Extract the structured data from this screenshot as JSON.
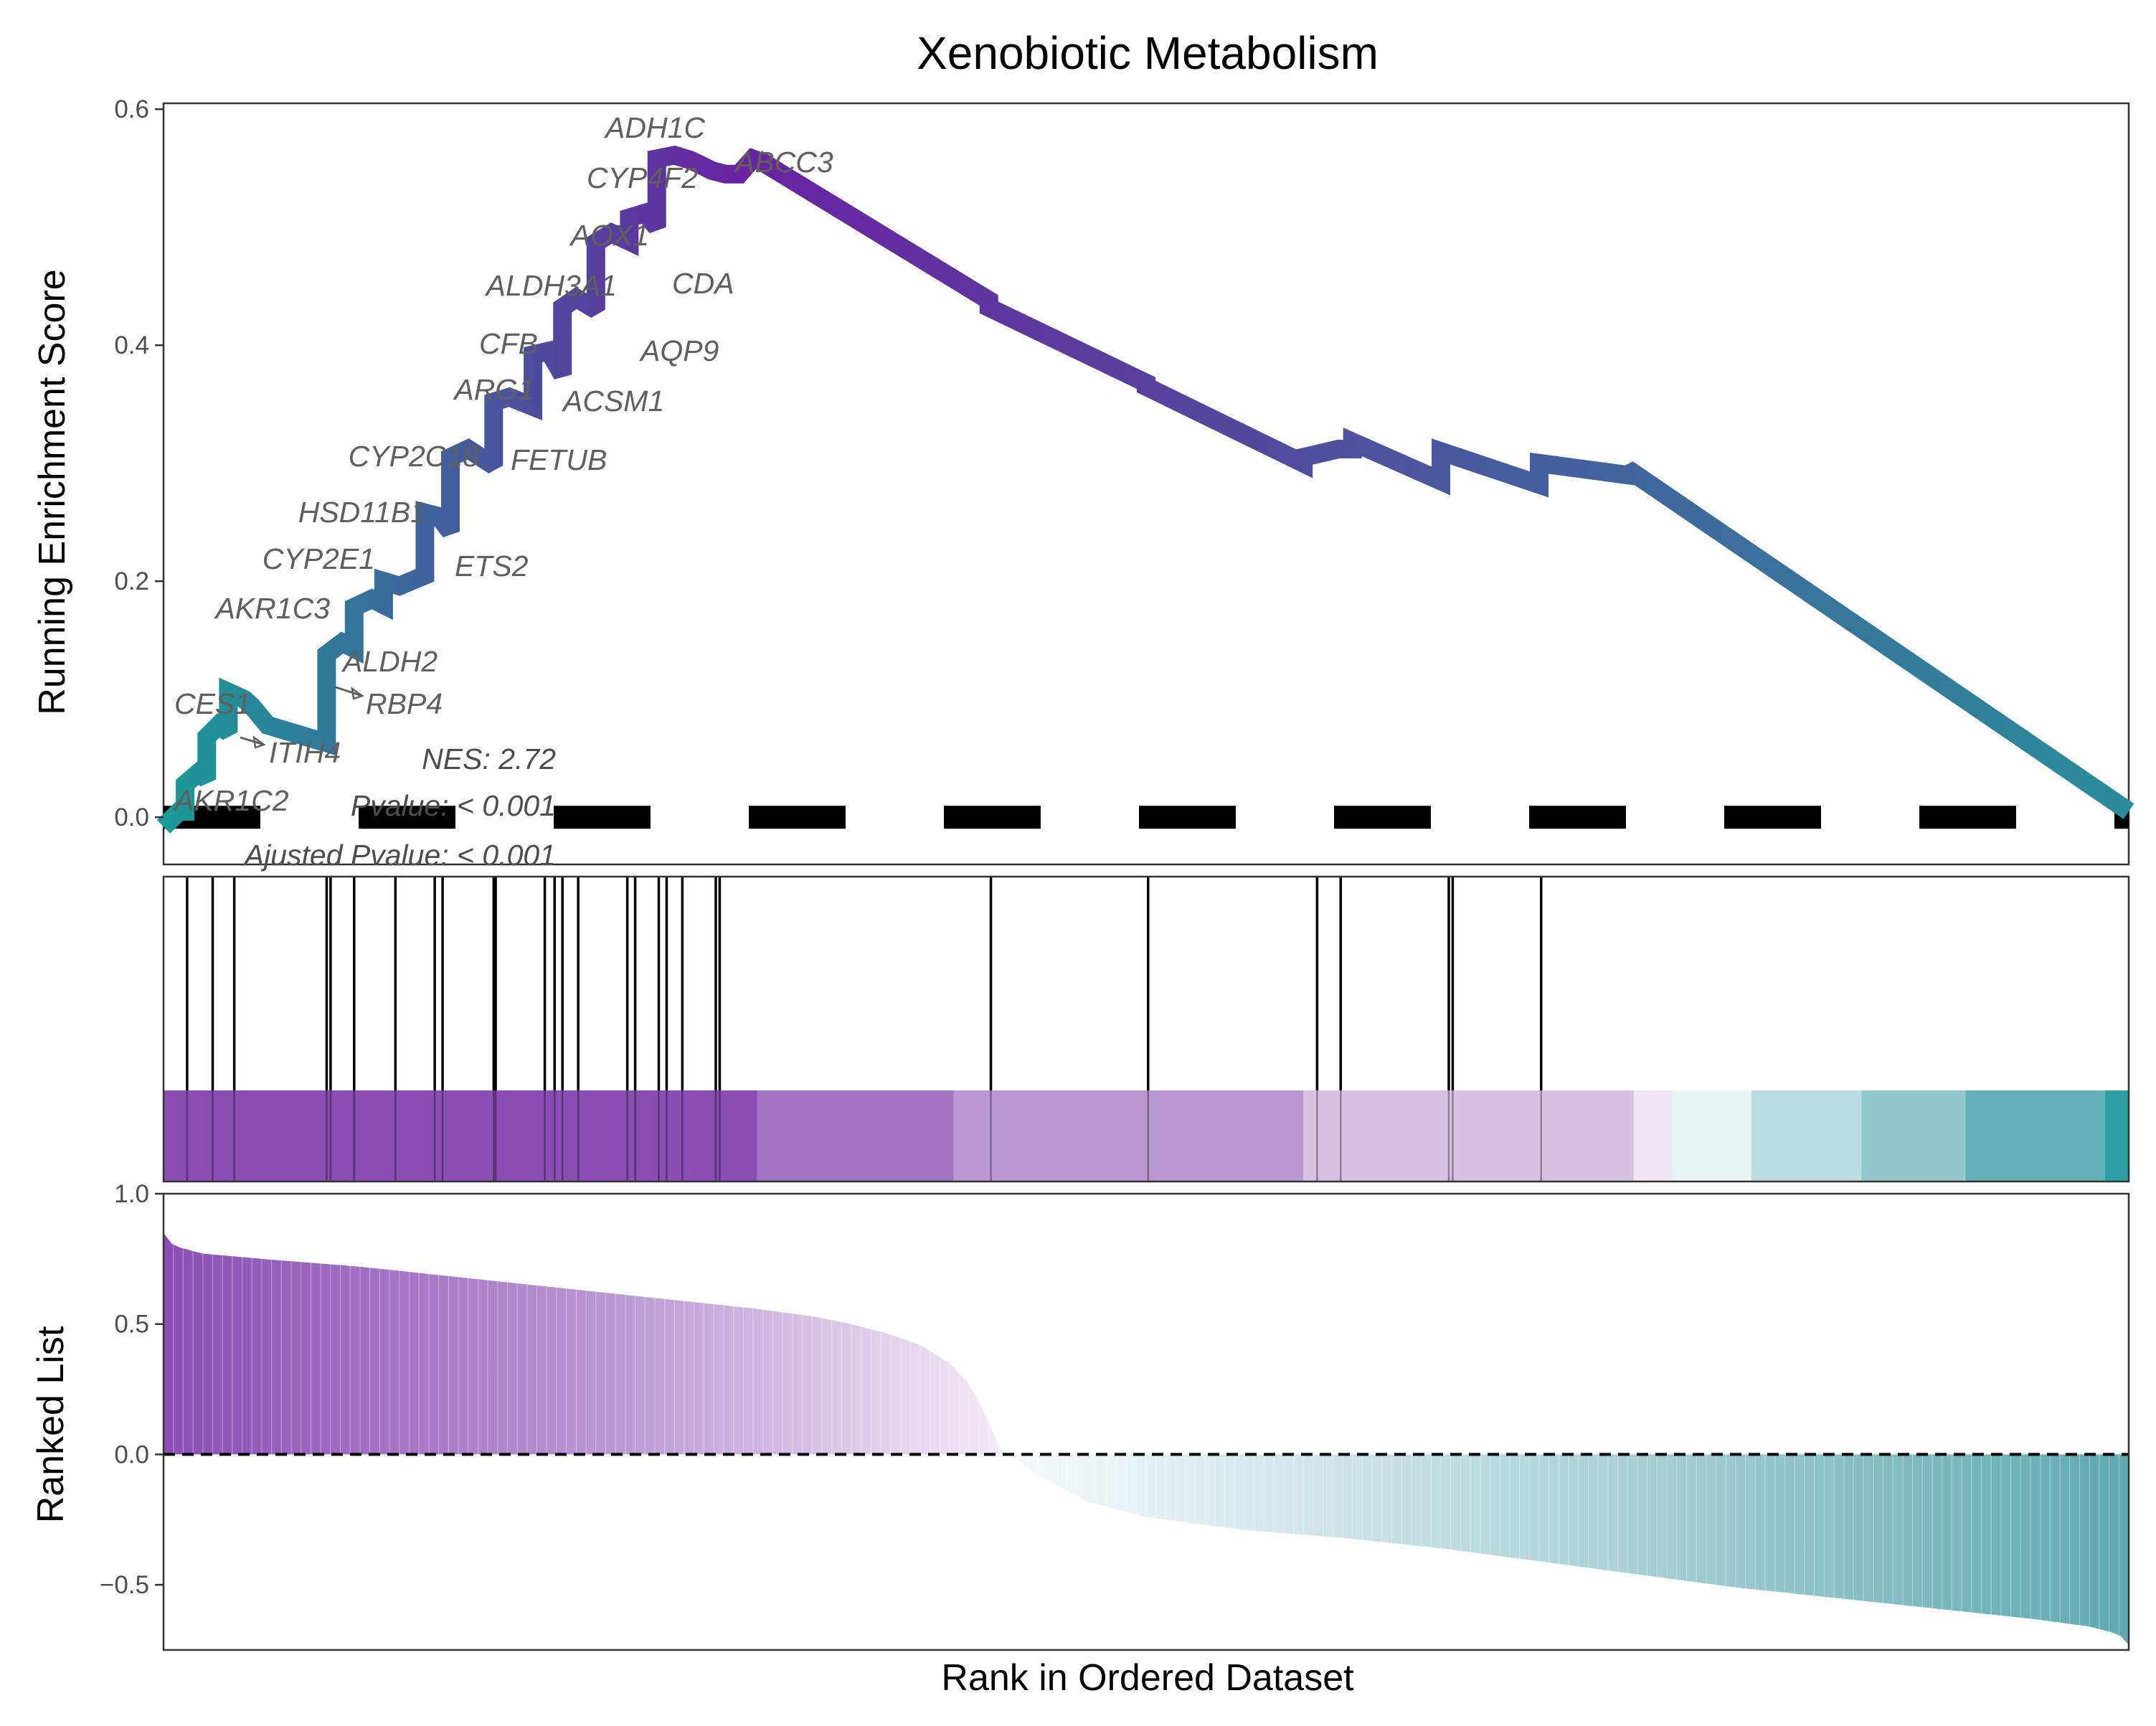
{
  "chart_data": [
    {
      "type": "line",
      "title": "Xenobiotic Metabolism",
      "ylabel": "Running Enrichment Score",
      "ylim": [
        -0.04,
        0.605
      ],
      "yticks": [
        0.0,
        0.2,
        0.4,
        0.6
      ],
      "ytick_labels": [
        "0.0",
        "0.2",
        "0.4",
        "0.6"
      ],
      "grid": false,
      "x_range": [
        0,
        1
      ],
      "baseline": 0.0,
      "series": [
        {
          "x": [
            0.0,
            0.008,
            0.011,
            0.011,
            0.018,
            0.022,
            0.022,
            0.028,
            0.033,
            0.033,
            0.041,
            0.045,
            0.045,
            0.053,
            0.083,
            0.083,
            0.091,
            0.097,
            0.097,
            0.106,
            0.112,
            0.112,
            0.12,
            0.133,
            0.133,
            0.14,
            0.146,
            0.146,
            0.155,
            0.168,
            0.168,
            0.176,
            0.188,
            0.188,
            0.196,
            0.203,
            0.203,
            0.21,
            0.22,
            0.22,
            0.228,
            0.237,
            0.237,
            0.245,
            0.251,
            0.251,
            0.26,
            0.268,
            0.268,
            0.273,
            0.279,
            0.279,
            0.286,
            0.293,
            0.293,
            0.302,
            0.302,
            0.42,
            0.42,
            0.5,
            0.5,
            0.58,
            0.58,
            0.598,
            0.605,
            0.605,
            0.65,
            0.65,
            0.7,
            0.7,
            0.745,
            0.745,
            1.0
          ],
          "y": [
            -0.008,
            0.005,
            0.005,
            0.028,
            0.038,
            0.032,
            0.068,
            0.078,
            0.072,
            0.106,
            0.1,
            0.094,
            0.094,
            0.078,
            0.063,
            0.138,
            0.148,
            0.143,
            0.178,
            0.185,
            0.18,
            0.2,
            0.196,
            0.205,
            0.258,
            0.255,
            0.242,
            0.305,
            0.312,
            0.298,
            0.352,
            0.356,
            0.348,
            0.392,
            0.395,
            0.375,
            0.432,
            0.44,
            0.43,
            0.487,
            0.495,
            0.488,
            0.508,
            0.512,
            0.5,
            0.558,
            0.561,
            0.557,
            0.557,
            0.553,
            0.548,
            0.548,
            0.545,
            0.545,
            0.545,
            0.562,
            0.558,
            0.438,
            0.432,
            0.368,
            0.365,
            0.3,
            0.305,
            0.312,
            0.312,
            0.318,
            0.285,
            0.31,
            0.282,
            0.3,
            0.29,
            0.295,
            0.005
          ],
          "color_start": "#1a9a98",
          "color_peak": "#6a22a0",
          "color_end": "#2a8c9a"
        }
      ],
      "annotations": [
        "NES: 2.72",
        "Pvalue: < 0.001",
        "Ajusted Pvalue: < 0.001"
      ],
      "gene_labels": [
        "ADH1C",
        "CYP4F2",
        "ABCC3",
        "AOX1",
        "ALDH3A1",
        "CDA",
        "CFB",
        "AQP9",
        "ARG1",
        "ACSM1",
        "CYP2C18",
        "FETUB",
        "HSD11B1",
        "CYP2E1",
        "ETS2",
        "AKR1C3",
        "ALDH2",
        "RBP4",
        "CES1",
        "ITIH4",
        "AKR1C2"
      ]
    },
    {
      "type": "heatmap",
      "hit_positions": [
        0.012,
        0.025,
        0.036,
        0.083,
        0.085,
        0.097,
        0.118,
        0.138,
        0.142,
        0.168,
        0.169,
        0.194,
        0.199,
        0.203,
        0.211,
        0.236,
        0.24,
        0.252,
        0.256,
        0.264,
        0.281,
        0.283,
        0.421,
        0.501,
        0.587,
        0.599,
        0.654,
        0.656,
        0.701
      ],
      "color_bands": [
        {
          "from": 0.0,
          "to": 0.302,
          "color": "#8a4db4"
        },
        {
          "from": 0.302,
          "to": 0.402,
          "color": "#a274c3"
        },
        {
          "from": 0.402,
          "to": 0.58,
          "color": "#bc98d2"
        },
        {
          "from": 0.58,
          "to": 0.748,
          "color": "#d8c2e4"
        },
        {
          "from": 0.748,
          "to": 0.768,
          "color": "#efe6f4"
        },
        {
          "from": 0.768,
          "to": 0.808,
          "color": "#e8f3f4"
        },
        {
          "from": 0.808,
          "to": 0.864,
          "color": "#bcdde0"
        },
        {
          "from": 0.864,
          "to": 0.917,
          "color": "#92c9cc"
        },
        {
          "from": 0.917,
          "to": 0.988,
          "color": "#62b1b8"
        },
        {
          "from": 0.988,
          "to": 1.0,
          "color": "#2e9ea6"
        }
      ]
    },
    {
      "type": "area",
      "ylabel": "Ranked List",
      "xlabel": "Rank in Ordered Dataset",
      "ylim": [
        -0.75,
        1.0
      ],
      "yticks": [
        -0.5,
        0.0,
        0.5,
        1.0
      ],
      "ytick_labels": [
        "−0.5",
        "0.0",
        "0.5",
        "1.0"
      ],
      "grid": false,
      "x": [
        0.0,
        0.005,
        0.02,
        0.05,
        0.1,
        0.15,
        0.2,
        0.25,
        0.3,
        0.33,
        0.35,
        0.37,
        0.385,
        0.4,
        0.41,
        0.415,
        0.42,
        0.423,
        0.425,
        0.43,
        0.436,
        0.445,
        0.455,
        0.47,
        0.5,
        0.55,
        0.6,
        0.65,
        0.7,
        0.75,
        0.8,
        0.85,
        0.9,
        0.95,
        0.98,
        0.995,
        1.0
      ],
      "values": [
        0.85,
        0.8,
        0.77,
        0.75,
        0.72,
        0.68,
        0.64,
        0.6,
        0.56,
        0.53,
        0.5,
        0.46,
        0.42,
        0.35,
        0.27,
        0.2,
        0.12,
        0.07,
        0.03,
        0.0,
        -0.03,
        -0.08,
        -0.12,
        -0.18,
        -0.24,
        -0.29,
        -0.32,
        -0.36,
        -0.41,
        -0.46,
        -0.51,
        -0.55,
        -0.59,
        -0.63,
        -0.66,
        -0.69,
        -0.73
      ],
      "positive_color": "#8a4db4",
      "negative_color": "#5fa9b1",
      "zero_line_style": "dashed"
    }
  ]
}
